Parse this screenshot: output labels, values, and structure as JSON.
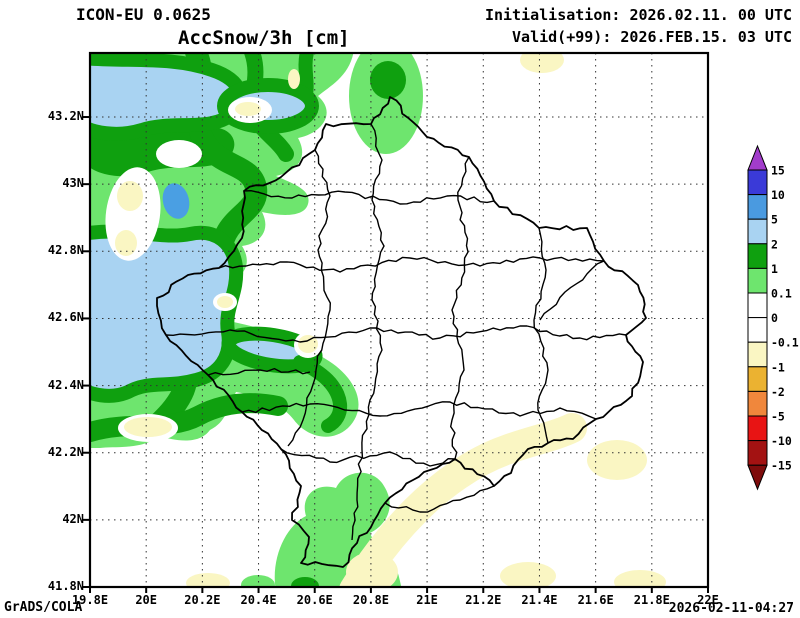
{
  "header": {
    "model": "ICON-EU 0.0625",
    "title": "AccSnow/3h [cm]",
    "initialisation": "Initialisation: 2026.02.11. 00 UTC",
    "valid": "Valid(+99): 2026.FEB.15. 03 UTC"
  },
  "footer": {
    "credit": "GrADS/COLA",
    "timestamp": "2026-02-11-04:27"
  },
  "axes": {
    "x_ticks": [
      {
        "label": "19.8E",
        "lon": 19.8
      },
      {
        "label": "20E",
        "lon": 20.0
      },
      {
        "label": "20.2E",
        "lon": 20.2
      },
      {
        "label": "20.4E",
        "lon": 20.4
      },
      {
        "label": "20.6E",
        "lon": 20.6
      },
      {
        "label": "20.8E",
        "lon": 20.8
      },
      {
        "label": "21E",
        "lon": 21.0
      },
      {
        "label": "21.2E",
        "lon": 21.2
      },
      {
        "label": "21.4E",
        "lon": 21.4
      },
      {
        "label": "21.6E",
        "lon": 21.6
      },
      {
        "label": "21.8E",
        "lon": 21.8
      },
      {
        "label": "22E",
        "lon": 22.0
      }
    ],
    "y_ticks": [
      {
        "label": "43.2N",
        "lat": 43.2
      },
      {
        "label": "43N",
        "lat": 43.0
      },
      {
        "label": "42.8N",
        "lat": 42.8
      },
      {
        "label": "42.6N",
        "lat": 42.6
      },
      {
        "label": "42.4N",
        "lat": 42.4
      },
      {
        "label": "42.2N",
        "lat": 42.2
      },
      {
        "label": "42N",
        "lat": 42.0
      },
      {
        "label": "41.8N",
        "lat": 41.8
      }
    ]
  },
  "colorbar": {
    "unit": "cm",
    "tick_labels": [
      "15",
      "10",
      "5",
      "2",
      "1",
      "0.1",
      "0",
      "-0.1",
      "-1",
      "-2",
      "-5",
      "-10",
      "-15"
    ],
    "segment_colors_top_to_bottom": [
      "#3A3AD8",
      "#4A9AE0",
      "#A9D3F2",
      "#0FA00F",
      "#6EE56E",
      "#FFFFFF",
      "#FFFFFF",
      "#FAF6C3",
      "#EBB231",
      "#F0873C",
      "#E81414",
      "#A31212"
    ],
    "arrow_top_color": "#A23CCB",
    "arrow_bottom_color": "#7E0C0C"
  },
  "palette": {
    "light_green": "#6EE56E",
    "dark_green": "#0FA00F",
    "light_blue": "#A9D3F2",
    "medium_blue": "#4A9FE3",
    "pale_yellow": "#FAF6C3"
  }
}
